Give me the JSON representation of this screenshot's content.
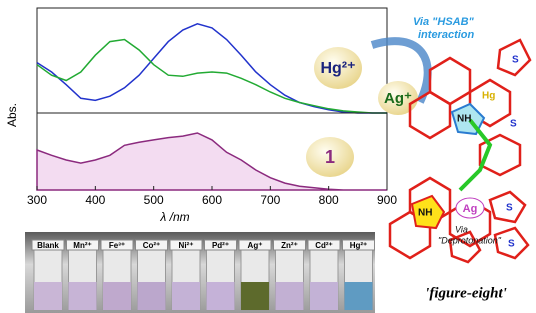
{
  "chart_data": [
    {
      "type": "line",
      "xlim": [
        300,
        900
      ],
      "ylim": [
        0,
        1
      ],
      "xticks": [
        300,
        400,
        500,
        600,
        700,
        800,
        900
      ],
      "y_label": "Abs.",
      "x_label": "λ /nm",
      "x": [
        300,
        325,
        350,
        375,
        400,
        425,
        450,
        475,
        500,
        525,
        550,
        575,
        600,
        625,
        650,
        675,
        700,
        725,
        750,
        775,
        800,
        825,
        850,
        875,
        900
      ],
      "series": [
        {
          "color": "#2233cc",
          "values": [
            0.48,
            0.39,
            0.27,
            0.14,
            0.12,
            0.16,
            0.24,
            0.36,
            0.52,
            0.68,
            0.79,
            0.85,
            0.81,
            0.7,
            0.55,
            0.39,
            0.27,
            0.17,
            0.1,
            0.06,
            0.03,
            0.01,
            0,
            0,
            0
          ]
        },
        {
          "color": "#22aa33",
          "values": [
            0.46,
            0.36,
            0.31,
            0.39,
            0.55,
            0.68,
            0.7,
            0.6,
            0.46,
            0.36,
            0.35,
            0.38,
            0.39,
            0.38,
            0.33,
            0.27,
            0.2,
            0.14,
            0.1,
            0.07,
            0.04,
            0.02,
            0.01,
            0,
            0
          ]
        }
      ]
    },
    {
      "type": "area",
      "xlim": [
        300,
        900
      ],
      "ylim": [
        0,
        1
      ],
      "color": "#8b2a7e",
      "fill": "#f3dcf1",
      "x": [
        300,
        325,
        350,
        375,
        400,
        425,
        450,
        475,
        500,
        525,
        550,
        575,
        600,
        625,
        650,
        675,
        700,
        725,
        750,
        775,
        800,
        825,
        850,
        875,
        900
      ],
      "values": [
        0.52,
        0.45,
        0.39,
        0.35,
        0.39,
        0.45,
        0.58,
        0.62,
        0.65,
        0.68,
        0.7,
        0.74,
        0.65,
        0.49,
        0.39,
        0.26,
        0.16,
        0.09,
        0.05,
        0.03,
        0.01,
        0,
        0,
        0,
        0
      ]
    }
  ],
  "bubbles": [
    "Hg²⁺",
    "Ag⁺",
    "1"
  ],
  "vials": [
    "Blank",
    "Mn²⁺",
    "Fe³⁺",
    "Co²⁺",
    "Ni²⁺",
    "Pd²⁺",
    "Ag⁺",
    "Zn²⁺",
    "Cd²⁺",
    "Hg²⁺"
  ],
  "diagram": {
    "hsab": "Via \"HSAB\"",
    "interaction": "interaction",
    "nh_top": "NH",
    "hg": "Hg",
    "s": [
      "S",
      "S",
      "S",
      "S"
    ],
    "nh_bottom": "NH",
    "ag": "Ag",
    "via": "Via",
    "deprotonation": "\"Deprotonation\"",
    "caption": "'figure-eight'"
  }
}
